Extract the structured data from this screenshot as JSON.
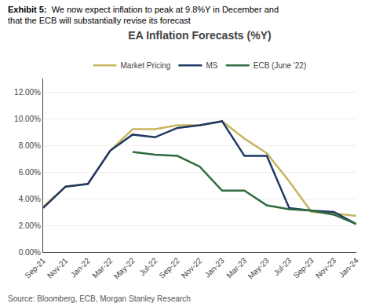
{
  "chart_data": {
    "type": "line",
    "title": "EA Inflation Forecasts (%Y)",
    "annotations": [
      "Exhibit 5:",
      "  We now expect inflation to peak at 9.8%Y in December and\nthat the ECB will substantially revise its forecast",
      "Source: Bloomberg, ECB, Morgan Stanley Research"
    ],
    "categories": [
      "Sep-21",
      "Nov-21",
      "Jan-22",
      "Mar-22",
      "May-22",
      "Jul-22",
      "Sep-22",
      "Nov-22",
      "Jan-23",
      "Mar-23",
      "May-23",
      "Jul-23",
      "Sep-23",
      "Nov-23",
      "Jan-24"
    ],
    "series": [
      {
        "name": "Market Pricing",
        "color": "#C8B560",
        "values": [
          3.4,
          4.9,
          5.1,
          7.6,
          9.2,
          9.2,
          9.5,
          9.5,
          9.8,
          8.5,
          7.4,
          5.3,
          3.0,
          2.9,
          2.7
        ]
      },
      {
        "name": "MS",
        "color": "#1F3864",
        "values": [
          3.3,
          4.9,
          5.1,
          7.6,
          8.8,
          8.6,
          9.3,
          9.5,
          9.8,
          7.2,
          7.2,
          3.3,
          3.1,
          3.0,
          2.1
        ]
      },
      {
        "name": "ECB (June '22)",
        "color": "#2E6B3E",
        "values": [
          null,
          null,
          null,
          null,
          7.5,
          7.3,
          7.2,
          6.4,
          4.6,
          4.6,
          3.5,
          3.2,
          3.1,
          2.8,
          2.1
        ]
      }
    ],
    "ylim": [
      0.0,
      13.0
    ],
    "yticks": [
      {
        "value": 0.0,
        "label": "0.00%"
      },
      {
        "value": 2.0,
        "label": "2.00%"
      },
      {
        "value": 4.0,
        "label": "4.00%"
      },
      {
        "value": 6.0,
        "label": "6.00%"
      },
      {
        "value": 8.0,
        "label": "8.00%"
      },
      {
        "value": 10.0,
        "label": "10.00%"
      },
      {
        "value": 12.0,
        "label": "12.00%"
      }
    ],
    "grid": true,
    "legend": "top"
  }
}
